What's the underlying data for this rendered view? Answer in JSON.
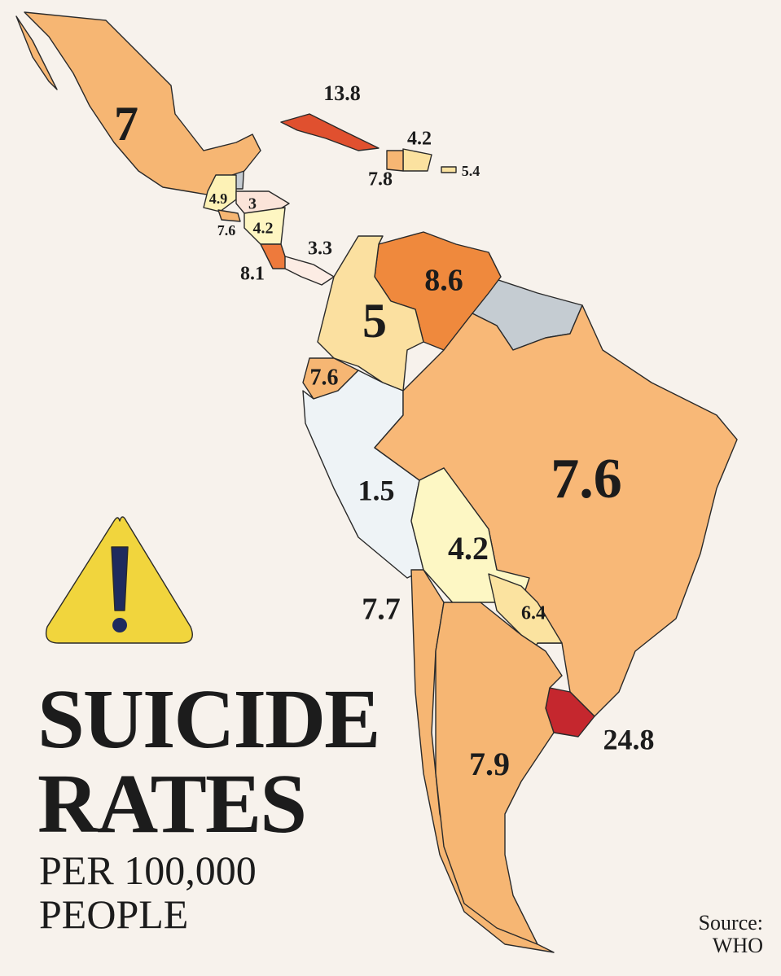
{
  "title": [
    "SUICIDE",
    "RATES"
  ],
  "subtitle": [
    "PER 100,000",
    "PEOPLE"
  ],
  "source": [
    "Source:",
    "WHO"
  ],
  "regions": [
    {
      "value": 7,
      "color": "#f6b673"
    },
    {
      "value": 13.8,
      "color": "#e0502f"
    },
    {
      "value": 4.2,
      "color": "#fbe2a0"
    },
    {
      "value": 7.8,
      "color": "#f6b673"
    },
    {
      "value": 5.4,
      "color": "#fbe2a0"
    },
    {
      "value": 4.9,
      "color": "#fdf2b6"
    },
    {
      "value": 3,
      "color": "#fbe4d9"
    },
    {
      "value": 7.6,
      "color": "#f6b673"
    },
    {
      "value": 4.2,
      "color": "#fef6c2"
    },
    {
      "value": 8.1,
      "color": "#ee7a3c"
    },
    {
      "value": 3.3,
      "color": "#fcece4"
    },
    {
      "value": 8.6,
      "color": "#ef893d"
    },
    {
      "value": 5,
      "color": "#fbe0a0"
    },
    {
      "value": 7.6,
      "color": "#f6b673"
    },
    {
      "value": 1.5,
      "color": "#eef3f6"
    },
    {
      "value": 7.6,
      "color": "#f8b877"
    },
    {
      "value": 4.2,
      "color": "#fdf7c4"
    },
    {
      "value": 6.4,
      "color": "#fbe3a0"
    },
    {
      "value": 7.7,
      "color": "#f6b673"
    },
    {
      "value": 24.8,
      "color": "#c5272e"
    },
    {
      "value": 7.9,
      "color": "#f6b673"
    }
  ]
}
